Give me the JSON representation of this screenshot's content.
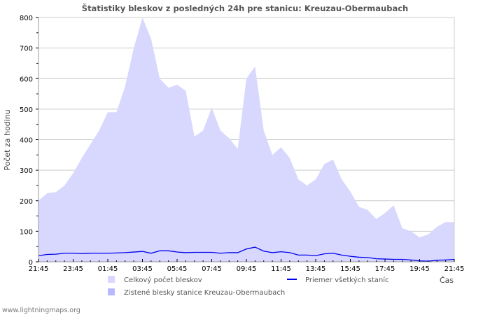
{
  "chart_data": {
    "type": "area",
    "title": "Štatistiky bleskov z posledných 24h pre stanicu: Kreuzau-Obermaubach",
    "xlabel": "Čas",
    "ylabel": "Počet za hodinu",
    "ylim": [
      0,
      800
    ],
    "yticks": [
      "0",
      "100",
      "200",
      "300",
      "400",
      "500",
      "600",
      "700",
      "800"
    ],
    "xticks": [
      "21:45",
      "23:45",
      "01:45",
      "03:45",
      "05:45",
      "07:45",
      "09:45",
      "11:45",
      "13:45",
      "15:45",
      "17:45",
      "19:45",
      "21:45"
    ],
    "grid": true,
    "x_hours": [
      0,
      0.5,
      1,
      1.5,
      2,
      2.5,
      3,
      3.5,
      4,
      4.5,
      5,
      5.5,
      6,
      6.5,
      7,
      7.5,
      8,
      8.5,
      9,
      9.5,
      10,
      10.5,
      11,
      11.5,
      12,
      12.5,
      13,
      13.5,
      14,
      14.5,
      15,
      15.5,
      16,
      16.5,
      17,
      17.5,
      18,
      18.5,
      19,
      19.5,
      20,
      20.5,
      21,
      21.5,
      22,
      22.5,
      23,
      23.5,
      24
    ],
    "series": [
      {
        "name": "Celkový počet bleskov",
        "kind": "area",
        "color": "#d8d8ff",
        "values": [
          200,
          225,
          228,
          250,
          290,
          340,
          385,
          430,
          490,
          490,
          575,
          700,
          800,
          730,
          600,
          570,
          580,
          560,
          410,
          430,
          505,
          430,
          405,
          370,
          600,
          640,
          430,
          350,
          375,
          340,
          270,
          250,
          270,
          320,
          335,
          270,
          230,
          180,
          170,
          140,
          160,
          185,
          110,
          100,
          80,
          90,
          115,
          130,
          130
        ]
      },
      {
        "name": "Zistené blesky stanice Kreuzau-Obermaubach",
        "kind": "area",
        "color": "#b8b8ff",
        "values": []
      },
      {
        "name": "Priemer všetkých staníc",
        "kind": "line",
        "color": "#0000ee",
        "values": [
          20,
          24,
          25,
          28,
          28,
          27,
          28,
          28,
          28,
          29,
          30,
          32,
          34,
          28,
          36,
          36,
          32,
          30,
          31,
          31,
          31,
          28,
          30,
          30,
          42,
          48,
          35,
          30,
          33,
          30,
          22,
          22,
          20,
          26,
          28,
          22,
          18,
          15,
          14,
          10,
          9,
          8,
          8,
          6,
          3,
          2,
          5,
          6,
          8
        ]
      }
    ],
    "legend": "bottom"
  },
  "footer": {
    "source": "www.lightningmaps.org"
  }
}
